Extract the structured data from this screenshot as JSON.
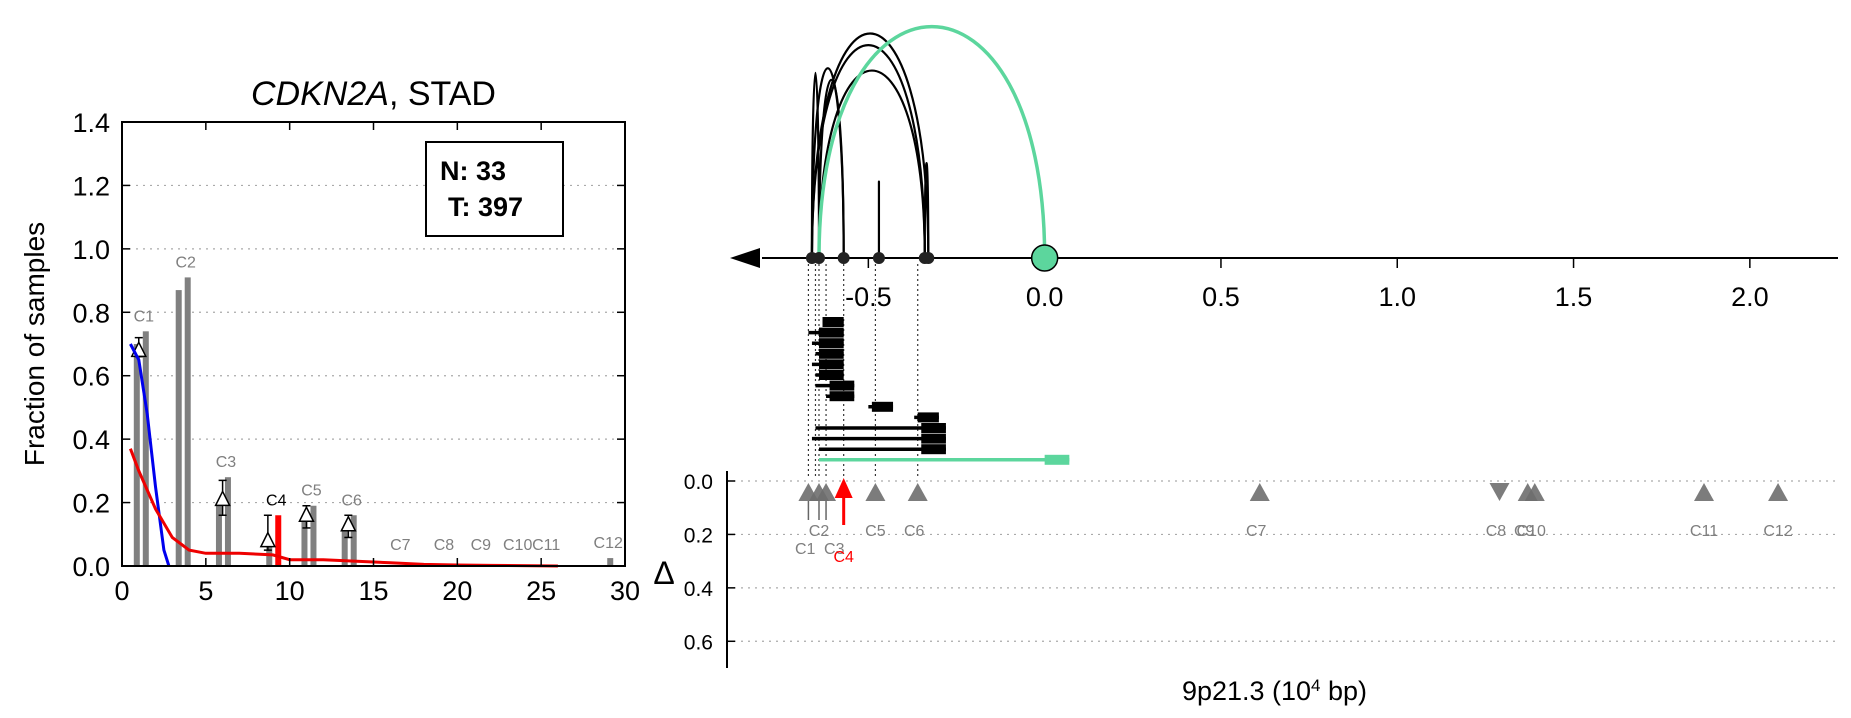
{
  "colors": {
    "bar": "#808080",
    "normal_line": "#0000ee",
    "tumor_line": "#ee0000",
    "highlight": "#ff0000",
    "green": "#5cd69d",
    "grid": "#aaaaaa",
    "tri": "#6e6e6e",
    "label_gray": "#7f7f7f"
  },
  "chart_data": [
    {
      "type": "bar",
      "title_gene": "CDKN2A",
      "title_rest": ", STAD",
      "xlabel": "",
      "ylabel": "Fraction of samples",
      "xlim": [
        0,
        30
      ],
      "ylim": [
        0,
        1.4
      ],
      "xticks": [
        "0",
        "5",
        "10",
        "15",
        "20",
        "25",
        "30"
      ],
      "yticks": [
        "0.0",
        "0.2",
        "0.4",
        "0.6",
        "0.8",
        "1.0",
        "1.2",
        "1.4"
      ],
      "grid": "horizontal dotted",
      "legend_box": {
        "line1": "N: 33",
        "line2": "T: 397",
        "position": "top-right"
      },
      "series": [
        {
          "name": "C1",
          "normal": 0.7,
          "tumor": 0.74,
          "x": 1.3
        },
        {
          "name": "C2",
          "normal": 0.87,
          "tumor": 0.91,
          "x": 3.8
        },
        {
          "name": "C3",
          "normal": 0.2,
          "tumor": 0.28,
          "x": 6.2
        },
        {
          "name": "C4",
          "normal": 0.06,
          "tumor": 0.16,
          "x": 9.2,
          "highlight": true
        },
        {
          "name": "C5",
          "normal": 0.16,
          "tumor": 0.19,
          "x": 11.3
        },
        {
          "name": "C6",
          "normal": 0.12,
          "tumor": 0.16,
          "x": 13.7
        },
        {
          "name": "C7",
          "normal": 0.0,
          "tumor": 0.0,
          "x": 16.6
        },
        {
          "name": "C8",
          "normal": 0.0,
          "tumor": 0.005,
          "x": 19.2
        },
        {
          "name": "C9",
          "normal": 0.0,
          "tumor": 0.0,
          "x": 21.4
        },
        {
          "name": "C10",
          "normal": 0.0,
          "tumor": 0.0,
          "x": 23.6
        },
        {
          "name": "C11",
          "normal": 0.0,
          "tumor": 0.0,
          "x": 25.3
        },
        {
          "name": "C12",
          "normal": 0.0,
          "tumor": 0.025,
          "x": 29.0
        }
      ],
      "delta_markers": [
        {
          "x": 1.0,
          "y": 0.68,
          "err_hi": 0.72,
          "err_lo": 0.66
        },
        {
          "x": 6.0,
          "y": 0.21,
          "err_hi": 0.27,
          "err_lo": 0.16
        },
        {
          "x": 8.7,
          "y": 0.08,
          "err_hi": 0.16,
          "err_lo": 0.05
        },
        {
          "x": 11.0,
          "y": 0.16,
          "err_hi": 0.19,
          "err_lo": 0.12
        },
        {
          "x": 13.5,
          "y": 0.13,
          "err_hi": 0.16,
          "err_lo": 0.09
        }
      ],
      "blue_curve": [
        [
          0.5,
          0.7
        ],
        [
          1.0,
          0.65
        ],
        [
          1.5,
          0.48
        ],
        [
          2.0,
          0.25
        ],
        [
          2.5,
          0.05
        ],
        [
          2.8,
          0.0
        ]
      ],
      "red_curve": [
        [
          0.5,
          0.37
        ],
        [
          1.0,
          0.3
        ],
        [
          2.0,
          0.18
        ],
        [
          3.0,
          0.09
        ],
        [
          4.0,
          0.05
        ],
        [
          5.0,
          0.04
        ],
        [
          7.0,
          0.04
        ],
        [
          9.0,
          0.035
        ],
        [
          10.0,
          0.02
        ],
        [
          12.0,
          0.02
        ],
        [
          14.0,
          0.015
        ],
        [
          16.0,
          0.01
        ],
        [
          18.0,
          0.005
        ],
        [
          20.0,
          0.003
        ],
        [
          22.0,
          0.002
        ],
        [
          26.0,
          0.0
        ]
      ]
    },
    {
      "type": "scatter",
      "axis_ticks": [
        "-0.5",
        "0.0",
        "0.5",
        "1.0",
        "1.5",
        "2.0"
      ],
      "xlim": [
        -0.83,
        2.25
      ],
      "delta_symbol": "Δ",
      "delta_yticks": [
        "0.0",
        "0.2",
        "0.4",
        "0.6"
      ],
      "delta_ylim": [
        0,
        0.7
      ],
      "xlabel_main": "9p21.3 (10",
      "xlabel_sup": "4",
      "xlabel_tail": " bp)",
      "junction_positions": [
        -0.66,
        -0.64,
        -0.57,
        -0.47,
        -0.34,
        -0.33,
        0.0
      ],
      "arcs": [
        {
          "x1": -0.66,
          "x2": -0.64,
          "h": 0.8
        },
        {
          "x1": -0.66,
          "x2": -0.33,
          "h": 0.97
        },
        {
          "x1": -0.66,
          "x2": -0.34,
          "h": 0.92
        },
        {
          "x1": -0.66,
          "x2": -0.57,
          "h": 0.82
        },
        {
          "x1": -0.64,
          "x2": -0.57,
          "h": 0.77
        },
        {
          "x1": -0.64,
          "x2": -0.34,
          "h": 0.81
        },
        {
          "x1": -0.47,
          "x2": -0.47,
          "h": 0.33
        },
        {
          "x1": -0.34,
          "x2": -0.33,
          "h": 0.41
        },
        {
          "x1": -0.64,
          "x2": 0.0,
          "h": 1.0,
          "green": true
        }
      ],
      "transcripts": [
        {
          "start": -0.63,
          "end": -0.57,
          "box": [
            -0.63,
            -0.57
          ]
        },
        {
          "start": -0.67,
          "end": -0.57,
          "box": [
            -0.64,
            -0.57
          ]
        },
        {
          "start": -0.66,
          "end": -0.57,
          "box": [
            -0.64,
            -0.57
          ]
        },
        {
          "start": -0.65,
          "end": -0.57,
          "box": [
            -0.64,
            -0.57
          ]
        },
        {
          "start": -0.66,
          "end": -0.57,
          "box": [
            -0.64,
            -0.57
          ]
        },
        {
          "start": -0.65,
          "end": -0.57,
          "box": [
            -0.64,
            -0.57
          ]
        },
        {
          "start": -0.65,
          "end": -0.54,
          "box": [
            -0.61,
            -0.54
          ]
        },
        {
          "start": -0.62,
          "end": -0.54,
          "box": [
            -0.61,
            -0.54
          ]
        },
        {
          "start": -0.5,
          "end": -0.43,
          "box": [
            -0.49,
            -0.43
          ]
        },
        {
          "start": -0.37,
          "end": -0.3,
          "box": [
            -0.36,
            -0.3
          ]
        },
        {
          "start": -0.65,
          "end": -0.28,
          "box": [
            -0.35,
            -0.28
          ]
        },
        {
          "start": -0.66,
          "end": -0.28,
          "box": [
            -0.35,
            -0.28
          ]
        },
        {
          "start": -0.64,
          "end": -0.28,
          "box": [
            -0.35,
            -0.28
          ]
        },
        {
          "start": -0.64,
          "end": 0.07,
          "box": [
            0.0,
            0.07
          ],
          "green": true
        }
      ],
      "markers": [
        {
          "name": "C1",
          "x": -0.67,
          "dir": "up"
        },
        {
          "name": "C2",
          "x": -0.64,
          "dir": "up"
        },
        {
          "name": "C3",
          "x": -0.62,
          "dir": "up"
        },
        {
          "name": "C4",
          "x": -0.57,
          "dir": "up",
          "highlight": true
        },
        {
          "name": "C5",
          "x": -0.48,
          "dir": "up"
        },
        {
          "name": "C6",
          "x": -0.36,
          "dir": "up"
        },
        {
          "name": "C7",
          "x": 0.61,
          "dir": "up"
        },
        {
          "name": "C8",
          "x": 1.29,
          "dir": "down"
        },
        {
          "name": "C9",
          "x": 1.37,
          "dir": "up"
        },
        {
          "name": "C10",
          "x": 1.39,
          "dir": "up"
        },
        {
          "name": "C11",
          "x": 1.87,
          "dir": "up"
        },
        {
          "name": "C12",
          "x": 2.08,
          "dir": "up"
        }
      ],
      "marker_labels": [
        {
          "text": "C1",
          "x": -0.645,
          "row": 2
        },
        {
          "text": "C2",
          "x": -0.64,
          "row": 1
        },
        {
          "text": "C3",
          "x": -0.625,
          "row": 2
        },
        {
          "text": "C4",
          "x": -0.57,
          "row": 3,
          "highlight": true
        },
        {
          "text": "C5",
          "x": -0.48,
          "row": 1
        },
        {
          "text": "C6",
          "x": -0.37,
          "row": 1
        },
        {
          "text": "C7",
          "x": 0.6,
          "row": 1
        },
        {
          "text": "C8",
          "x": 1.28,
          "row": 1
        },
        {
          "text": "C9",
          "x": 1.36,
          "row": 1
        },
        {
          "text": "C10",
          "x": 1.38,
          "row": 1
        },
        {
          "text": "C11",
          "x": 1.87,
          "row": 1
        },
        {
          "text": "C12",
          "x": 2.08,
          "row": 1
        }
      ]
    }
  ]
}
